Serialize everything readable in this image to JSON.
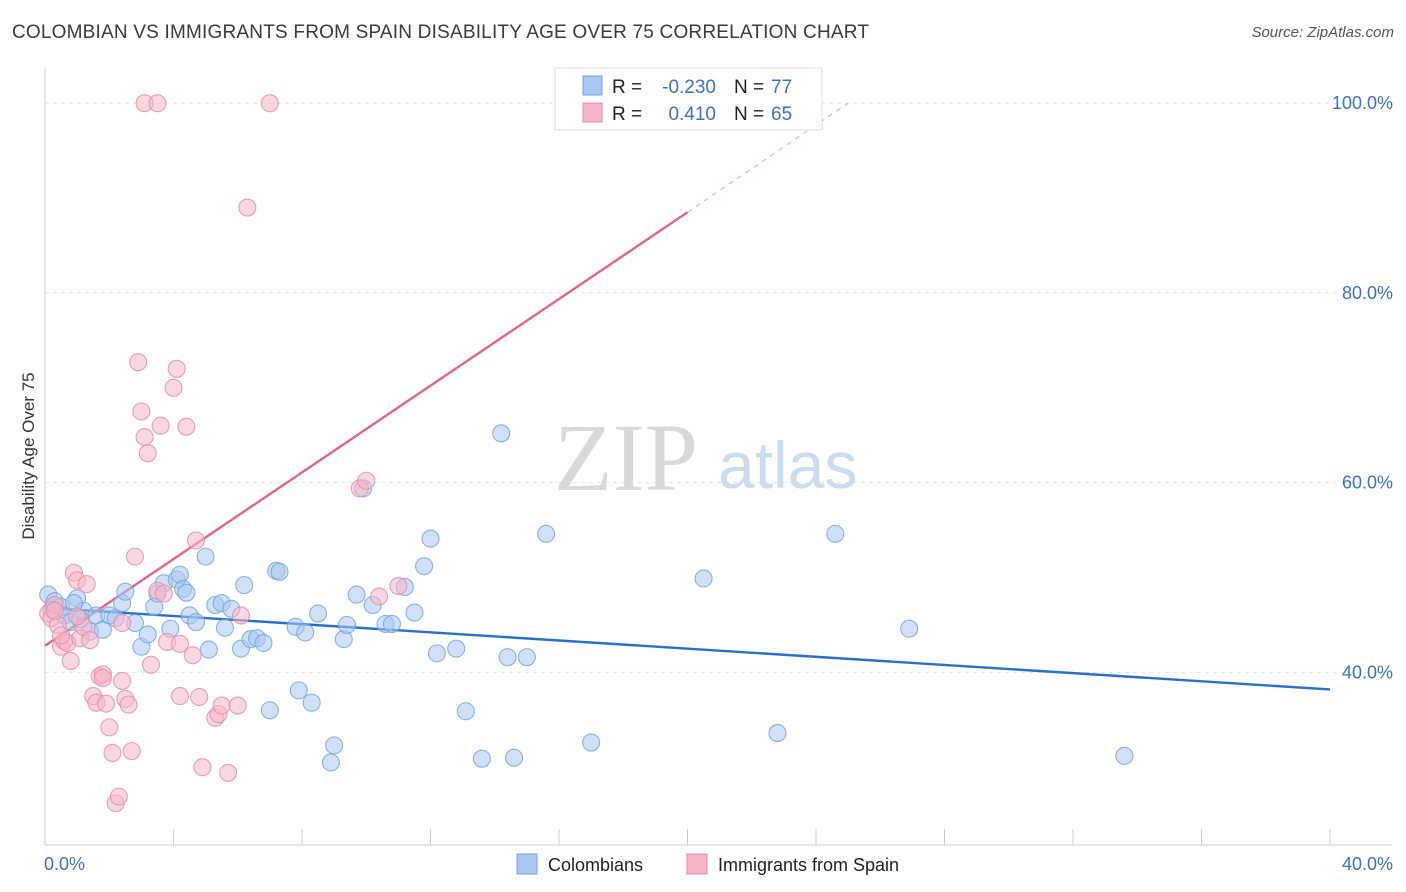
{
  "header": {
    "title": "COLOMBIAN VS IMMIGRANTS FROM SPAIN DISABILITY AGE OVER 75 CORRELATION CHART",
    "source": "Source: ZipAtlas.com"
  },
  "legend_top": {
    "rows": [
      {
        "r_label": "R =",
        "r_value": "-0.230",
        "n_label": "N =",
        "n_value": "77",
        "color": "#a9c8f0"
      },
      {
        "r_label": "R =",
        "r_value": "0.410",
        "n_label": "N =",
        "n_value": "65",
        "color": "#f6b6c8"
      }
    ]
  },
  "legend_bottom": {
    "items": [
      {
        "label": "Colombians",
        "color": "#a9c8f0"
      },
      {
        "label": "Immigrants from Spain",
        "color": "#f6b6c8"
      }
    ]
  },
  "watermark": {
    "zip": "ZIP",
    "atlas": "atlas"
  },
  "chart_data": {
    "type": "scatter",
    "title": "COLOMBIAN VS IMMIGRANTS FROM SPAIN DISABILITY AGE OVER 75 CORRELATION CHART",
    "xlabel": "",
    "ylabel": "Disability Age Over 75",
    "xlim": [
      0,
      40
    ],
    "ylim": [
      21.8,
      103.5
    ],
    "x_tick_labels": [
      "0.0%",
      "40.0%"
    ],
    "y_ticks": [
      40,
      60,
      80,
      100
    ],
    "y_tick_labels": [
      "40.0%",
      "60.0%",
      "80.0%",
      "100.0%"
    ],
    "grid": true,
    "legend_position": "top-center",
    "series": [
      {
        "name": "Colombians",
        "color": "#6fa3e0",
        "fill": "#a9c8f0",
        "trend": {
          "x0": 0,
          "y0": 46.8,
          "x1": 40,
          "y1": 38.2
        },
        "points": [
          [
            0.1,
            48.2
          ],
          [
            0.3,
            47.5
          ],
          [
            0.5,
            46.9
          ],
          [
            0.6,
            46.0
          ],
          [
            0.8,
            45.3
          ],
          [
            1.0,
            47.8
          ],
          [
            1.2,
            46.5
          ],
          [
            1.4,
            44.3
          ],
          [
            1.6,
            46.0
          ],
          [
            1.8,
            44.5
          ],
          [
            2.0,
            46.0
          ],
          [
            2.2,
            45.7
          ],
          [
            2.4,
            47.3
          ],
          [
            2.5,
            48.5
          ],
          [
            2.8,
            45.2
          ],
          [
            3.0,
            42.7
          ],
          [
            3.2,
            44.0
          ],
          [
            3.4,
            46.9
          ],
          [
            3.5,
            48.3
          ],
          [
            3.7,
            49.4
          ],
          [
            3.9,
            44.6
          ],
          [
            4.1,
            49.8
          ],
          [
            4.2,
            50.3
          ],
          [
            4.3,
            48.8
          ],
          [
            4.4,
            48.4
          ],
          [
            4.5,
            46.0
          ],
          [
            4.7,
            45.3
          ],
          [
            5.0,
            52.2
          ],
          [
            5.1,
            42.4
          ],
          [
            5.3,
            47.1
          ],
          [
            5.5,
            47.3
          ],
          [
            5.6,
            44.7
          ],
          [
            5.8,
            46.7
          ],
          [
            6.1,
            42.5
          ],
          [
            6.2,
            49.2
          ],
          [
            6.4,
            43.5
          ],
          [
            6.6,
            43.6
          ],
          [
            6.8,
            43.1
          ],
          [
            7.0,
            36.0
          ],
          [
            7.2,
            50.7
          ],
          [
            7.3,
            50.6
          ],
          [
            7.8,
            44.8
          ],
          [
            7.9,
            38.1
          ],
          [
            8.1,
            44.2
          ],
          [
            8.3,
            36.8
          ],
          [
            8.5,
            46.2
          ],
          [
            8.9,
            30.5
          ],
          [
            9.0,
            32.3
          ],
          [
            9.3,
            43.5
          ],
          [
            9.4,
            45.0
          ],
          [
            9.7,
            48.2
          ],
          [
            9.9,
            59.4
          ],
          [
            10.2,
            47.1
          ],
          [
            10.6,
            45.1
          ],
          [
            10.8,
            45.1
          ],
          [
            11.2,
            49.0
          ],
          [
            11.5,
            46.3
          ],
          [
            11.8,
            51.2
          ],
          [
            12.0,
            54.1
          ],
          [
            12.2,
            42.0
          ],
          [
            12.8,
            42.5
          ],
          [
            13.1,
            35.9
          ],
          [
            13.6,
            30.9
          ],
          [
            14.2,
            65.2
          ],
          [
            14.4,
            41.6
          ],
          [
            14.6,
            31.0
          ],
          [
            15.0,
            41.6
          ],
          [
            15.6,
            54.6
          ],
          [
            17.0,
            32.6
          ],
          [
            20.5,
            49.9
          ],
          [
            22.8,
            33.6
          ],
          [
            24.6,
            54.6
          ],
          [
            26.9,
            44.6
          ],
          [
            33.6,
            31.2
          ],
          [
            0.9,
            47.3
          ],
          [
            0.2,
            46.6
          ],
          [
            1.1,
            45.6
          ]
        ]
      },
      {
        "name": "Immigrants from Spain",
        "color": "#e58aa6",
        "fill": "#f6b6c8",
        "trend": {
          "x0": 0,
          "y0": 42.8,
          "x1": 20.0,
          "y1": 88.5
        },
        "trend_dashed_to": {
          "x1": 25.0,
          "y1": 100.0
        },
        "points": [
          [
            0.1,
            46.2
          ],
          [
            0.2,
            45.7
          ],
          [
            0.3,
            47.1
          ],
          [
            0.4,
            45.0
          ],
          [
            0.5,
            42.7
          ],
          [
            0.6,
            43.3
          ],
          [
            0.7,
            43.1
          ],
          [
            0.8,
            41.2
          ],
          [
            0.9,
            50.5
          ],
          [
            1.0,
            49.7
          ],
          [
            1.1,
            43.6
          ],
          [
            1.2,
            44.8
          ],
          [
            1.3,
            49.3
          ],
          [
            1.4,
            43.4
          ],
          [
            1.5,
            37.5
          ],
          [
            1.6,
            36.8
          ],
          [
            1.7,
            39.6
          ],
          [
            1.8,
            39.8
          ],
          [
            1.9,
            36.7
          ],
          [
            2.0,
            34.2
          ],
          [
            2.1,
            31.5
          ],
          [
            2.2,
            26.2
          ],
          [
            2.3,
            26.9
          ],
          [
            2.4,
            39.1
          ],
          [
            2.5,
            37.2
          ],
          [
            2.6,
            36.6
          ],
          [
            2.7,
            31.7
          ],
          [
            2.8,
            52.2
          ],
          [
            2.9,
            72.7
          ],
          [
            3.0,
            67.5
          ],
          [
            3.1,
            64.8
          ],
          [
            3.2,
            63.1
          ],
          [
            3.3,
            40.8
          ],
          [
            3.5,
            48.6
          ],
          [
            3.6,
            66.0
          ],
          [
            3.7,
            48.3
          ],
          [
            3.8,
            43.2
          ],
          [
            4.0,
            70.0
          ],
          [
            4.1,
            72.0
          ],
          [
            4.2,
            37.5
          ],
          [
            4.4,
            65.9
          ],
          [
            4.6,
            41.8
          ],
          [
            4.7,
            53.9
          ],
          [
            4.8,
            37.4
          ],
          [
            4.9,
            30.0
          ],
          [
            5.3,
            35.2
          ],
          [
            5.4,
            35.6
          ],
          [
            5.5,
            36.5
          ],
          [
            5.7,
            29.4
          ],
          [
            6.0,
            36.5
          ],
          [
            6.1,
            46.0
          ],
          [
            6.3,
            89.0
          ],
          [
            7.0,
            100.0
          ],
          [
            3.1,
            100.0
          ],
          [
            3.5,
            100.0
          ],
          [
            9.8,
            59.4
          ],
          [
            10.0,
            60.2
          ],
          [
            10.4,
            48.0
          ],
          [
            11.0,
            49.1
          ],
          [
            1.0,
            45.9
          ],
          [
            0.5,
            43.9
          ],
          [
            0.3,
            46.5
          ],
          [
            1.8,
            39.4
          ],
          [
            2.4,
            45.2
          ],
          [
            4.2,
            43.0
          ]
        ]
      }
    ]
  }
}
